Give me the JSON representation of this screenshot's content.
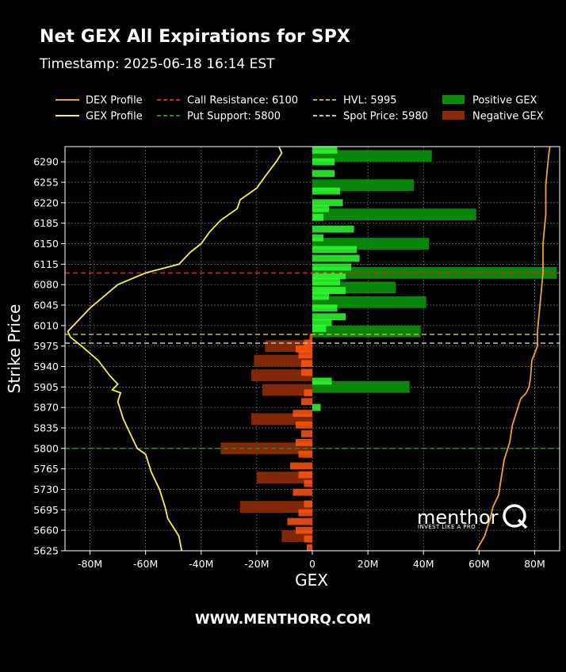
{
  "title": "Net GEX All Expirations for SPX",
  "subtitle": "Timestamp: 2025-06-18 16:14 EST",
  "footer": "WWW.MENTHORQ.COM",
  "logo": {
    "name": "menthor",
    "q": "Q",
    "tagline": "INVEST LIKE A PRO"
  },
  "colors": {
    "dex": "#f0a030",
    "gex": "#f7f04a",
    "call_resistance": "#e02020",
    "put_support": "#1f8a1f",
    "hvl": "#b8b030",
    "spot": "#c0c0c0",
    "positive": "#0a8c0a",
    "negative": "#8a2a06",
    "positive_bright": "#30ff30",
    "negative_bright": "#ff5510"
  },
  "legend": {
    "items": [
      {
        "label": "DEX Profile",
        "kind": "line",
        "color": "#f0a030"
      },
      {
        "label": "GEX Profile",
        "kind": "line",
        "color": "#f7f04a"
      },
      {
        "label": "Call Resistance: 6100",
        "kind": "dash",
        "color": "#e02020"
      },
      {
        "label": "Put Support: 5800",
        "kind": "dash",
        "color": "#1f8a1f"
      },
      {
        "label": "HVL: 5995",
        "kind": "dash",
        "color": "#b8b030"
      },
      {
        "label": "Spot Price: 5980",
        "kind": "dash",
        "color": "#c0c0c0"
      },
      {
        "label": "Positive GEX",
        "kind": "patch",
        "color": "#0a8c0a"
      },
      {
        "label": "Negative GEX",
        "kind": "patch",
        "color": "#8a2a06"
      }
    ]
  },
  "chart_data": {
    "type": "bar",
    "orientation": "horizontal",
    "xlabel": "GEX",
    "ylabel": "Strike Price",
    "xlim": [
      -89000000,
      89000000
    ],
    "ylim": [
      5625,
      6316
    ],
    "x_ticks": [
      -80000000,
      -60000000,
      -40000000,
      -20000000,
      0,
      20000000,
      40000000,
      60000000,
      80000000
    ],
    "x_tick_labels": [
      "-80M",
      "-60M",
      "-40M",
      "-20M",
      "0",
      "20M",
      "40M",
      "60M",
      "80M"
    ],
    "y_ticks": [
      5625,
      5660,
      5695,
      5730,
      5765,
      5800,
      5835,
      5870,
      5905,
      5940,
      5975,
      6010,
      6045,
      6080,
      6115,
      6150,
      6185,
      6220,
      6255,
      6290
    ],
    "grid": true,
    "levels": [
      {
        "name": "Call Resistance",
        "value": 6100
      },
      {
        "name": "HVL",
        "value": 5995
      },
      {
        "name": "Spot Price",
        "value": 5980
      },
      {
        "name": "Put Support",
        "value": 5800
      }
    ],
    "net_gex_bars": [
      {
        "strike": 6300,
        "value": 43000000
      },
      {
        "strike": 6250,
        "value": 36500000
      },
      {
        "strike": 6200,
        "value": 59000000
      },
      {
        "strike": 6150,
        "value": 42000000
      },
      {
        "strike": 6100,
        "value": 88000000
      },
      {
        "strike": 6075,
        "value": 30000000
      },
      {
        "strike": 6050,
        "value": 41000000
      },
      {
        "strike": 6000,
        "value": 39000000
      },
      {
        "strike": 5975,
        "value": -17000000
      },
      {
        "strike": 5950,
        "value": -21000000
      },
      {
        "strike": 5925,
        "value": -22000000
      },
      {
        "strike": 5905,
        "value": 35000000
      },
      {
        "strike": 5900,
        "value": -18000000
      },
      {
        "strike": 5850,
        "value": -22000000
      },
      {
        "strike": 5800,
        "value": -33000000
      },
      {
        "strike": 5750,
        "value": -20000000
      },
      {
        "strike": 5700,
        "value": -26000000
      },
      {
        "strike": 5650,
        "value": -11000000
      }
    ],
    "gex_bars_bright": [
      {
        "strike": 6310,
        "value": 9000000
      },
      {
        "strike": 6290,
        "value": 8000000
      },
      {
        "strike": 6270,
        "value": 8000000
      },
      {
        "strike": 6240,
        "value": 10000000
      },
      {
        "strike": 6220,
        "value": 11000000
      },
      {
        "strike": 6210,
        "value": 6000000
      },
      {
        "strike": 6195,
        "value": 4000000
      },
      {
        "strike": 6175,
        "value": 15000000
      },
      {
        "strike": 6160,
        "value": 4000000
      },
      {
        "strike": 6140,
        "value": 16000000
      },
      {
        "strike": 6125,
        "value": 17000000
      },
      {
        "strike": 6110,
        "value": 14000000
      },
      {
        "strike": 6095,
        "value": 12000000
      },
      {
        "strike": 6085,
        "value": 10000000
      },
      {
        "strike": 6070,
        "value": 12000000
      },
      {
        "strike": 6060,
        "value": 6000000
      },
      {
        "strike": 6040,
        "value": 9000000
      },
      {
        "strike": 6025,
        "value": 12000000
      },
      {
        "strike": 6015,
        "value": 7000000
      },
      {
        "strike": 6005,
        "value": 5000000
      },
      {
        "strike": 5990,
        "value": -1000000
      },
      {
        "strike": 5980,
        "value": -3000000
      },
      {
        "strike": 5970,
        "value": -6000000
      },
      {
        "strike": 5960,
        "value": -5000000
      },
      {
        "strike": 5945,
        "value": -4000000
      },
      {
        "strike": 5930,
        "value": -4000000
      },
      {
        "strike": 5915,
        "value": 7000000
      },
      {
        "strike": 5895,
        "value": -3000000
      },
      {
        "strike": 5880,
        "value": -4000000
      },
      {
        "strike": 5870,
        "value": 3000000
      },
      {
        "strike": 5860,
        "value": -7000000
      },
      {
        "strike": 5840,
        "value": -6000000
      },
      {
        "strike": 5825,
        "value": -4000000
      },
      {
        "strike": 5810,
        "value": -6000000
      },
      {
        "strike": 5790,
        "value": -5000000
      },
      {
        "strike": 5770,
        "value": -8000000
      },
      {
        "strike": 5755,
        "value": -5000000
      },
      {
        "strike": 5740,
        "value": -3000000
      },
      {
        "strike": 5725,
        "value": -7000000
      },
      {
        "strike": 5705,
        "value": -3000000
      },
      {
        "strike": 5690,
        "value": -5000000
      },
      {
        "strike": 5675,
        "value": -9000000
      },
      {
        "strike": 5660,
        "value": -6000000
      },
      {
        "strike": 5645,
        "value": -3000000
      },
      {
        "strike": 5630,
        "value": -2000000
      }
    ],
    "dex_profile": [
      [
        5625,
        59000000
      ],
      [
        5650,
        62000000
      ],
      [
        5680,
        64000000
      ],
      [
        5700,
        65000000
      ],
      [
        5720,
        67000000
      ],
      [
        5750,
        68000000
      ],
      [
        5780,
        69000000
      ],
      [
        5795,
        70000000
      ],
      [
        5810,
        71000000
      ],
      [
        5840,
        72000000
      ],
      [
        5870,
        74000000
      ],
      [
        5885,
        75000000
      ],
      [
        5895,
        77000000
      ],
      [
        5905,
        78000000
      ],
      [
        5920,
        78500000
      ],
      [
        5950,
        79000000
      ],
      [
        5975,
        81000000
      ],
      [
        6000,
        81000000
      ],
      [
        6050,
        82000000
      ],
      [
        6100,
        83000000
      ],
      [
        6150,
        83000000
      ],
      [
        6200,
        84000000
      ],
      [
        6250,
        84000000
      ],
      [
        6300,
        85000000
      ],
      [
        6316,
        85500000
      ]
    ],
    "gex_profile": [
      [
        5625,
        -47000000
      ],
      [
        5650,
        -48000000
      ],
      [
        5680,
        -52000000
      ],
      [
        5700,
        -53000000
      ],
      [
        5730,
        -55000000
      ],
      [
        5760,
        -58000000
      ],
      [
        5790,
        -60000000
      ],
      [
        5800,
        -63000000
      ],
      [
        5820,
        -65000000
      ],
      [
        5850,
        -68000000
      ],
      [
        5880,
        -70000000
      ],
      [
        5895,
        -69000000
      ],
      [
        5900,
        -72000000
      ],
      [
        5910,
        -70000000
      ],
      [
        5925,
        -73000000
      ],
      [
        5950,
        -77000000
      ],
      [
        5975,
        -83000000
      ],
      [
        5990,
        -87000000
      ],
      [
        6000,
        -88000000
      ],
      [
        6015,
        -85000000
      ],
      [
        6040,
        -80000000
      ],
      [
        6060,
        -75000000
      ],
      [
        6080,
        -70000000
      ],
      [
        6100,
        -60000000
      ],
      [
        6115,
        -48000000
      ],
      [
        6135,
        -44000000
      ],
      [
        6150,
        -40000000
      ],
      [
        6170,
        -37000000
      ],
      [
        6190,
        -33000000
      ],
      [
        6210,
        -27000000
      ],
      [
        6225,
        -26000000
      ],
      [
        6245,
        -20000000
      ],
      [
        6265,
        -17000000
      ],
      [
        6290,
        -13000000
      ],
      [
        6305,
        -11000000
      ],
      [
        6316,
        -12000000
      ]
    ]
  }
}
